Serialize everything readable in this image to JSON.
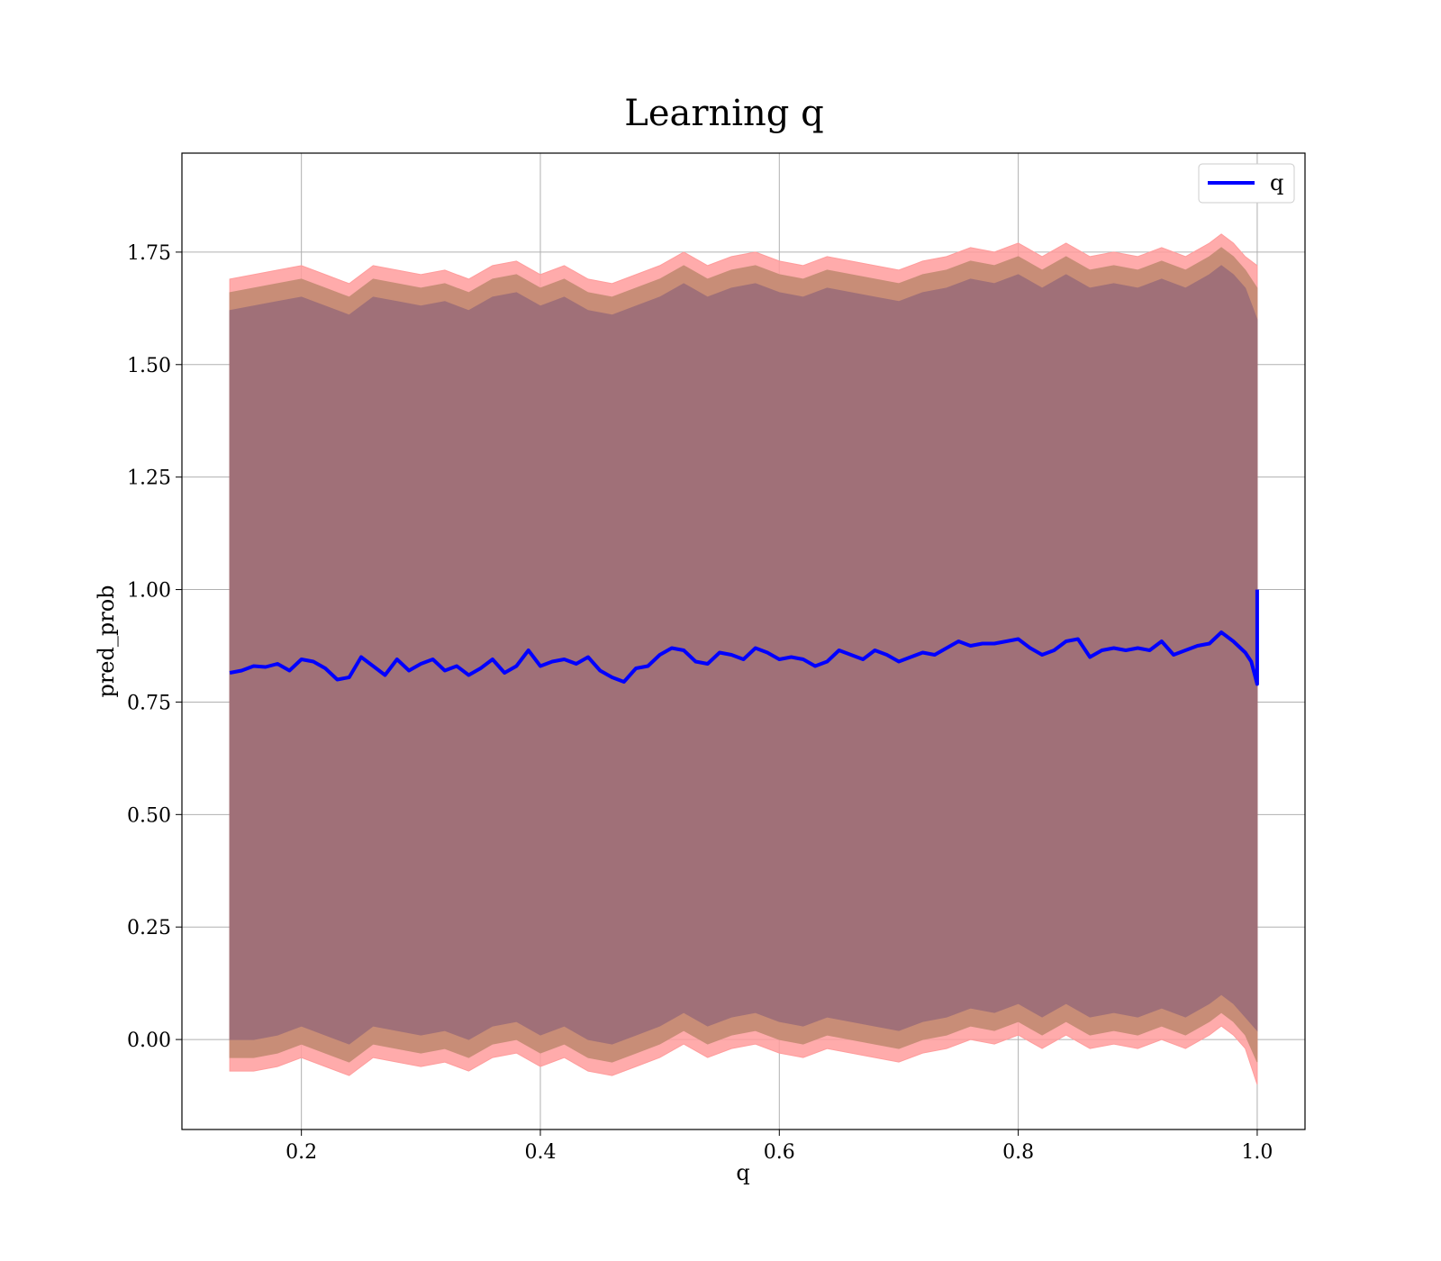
{
  "chart_data": {
    "type": "line",
    "title": "Learning q",
    "xlabel": "q",
    "ylabel": "pred_prob",
    "xlim": [
      0.1,
      1.04
    ],
    "ylim": [
      -0.2,
      1.97
    ],
    "grid": true,
    "legend": {
      "position": "top-right",
      "entries": [
        "q"
      ]
    },
    "x_ticks": [
      0.2,
      0.4,
      0.6,
      0.8,
      1.0
    ],
    "x_tick_labels": [
      "0.2",
      "0.4",
      "0.6",
      "0.8",
      "1.0"
    ],
    "y_ticks": [
      0.0,
      0.25,
      0.5,
      0.75,
      1.0,
      1.25,
      1.5,
      1.75
    ],
    "y_tick_labels": [
      "0.00",
      "0.25",
      "0.50",
      "0.75",
      "1.00",
      "1.25",
      "1.50",
      "1.75"
    ],
    "colors": {
      "line": "#0000ff",
      "band_outer": "#ff9c9c",
      "band_middle": "#c88d77",
      "band_inner": "#a07078"
    },
    "series": [
      {
        "name": "q",
        "role": "mean",
        "x": [
          0.14,
          0.15,
          0.16,
          0.17,
          0.18,
          0.19,
          0.2,
          0.21,
          0.22,
          0.23,
          0.24,
          0.25,
          0.26,
          0.27,
          0.28,
          0.29,
          0.3,
          0.31,
          0.32,
          0.33,
          0.34,
          0.35,
          0.36,
          0.37,
          0.38,
          0.39,
          0.4,
          0.41,
          0.42,
          0.43,
          0.44,
          0.45,
          0.46,
          0.47,
          0.48,
          0.49,
          0.5,
          0.51,
          0.52,
          0.53,
          0.54,
          0.55,
          0.56,
          0.57,
          0.58,
          0.59,
          0.6,
          0.61,
          0.62,
          0.63,
          0.64,
          0.65,
          0.66,
          0.67,
          0.68,
          0.69,
          0.7,
          0.71,
          0.72,
          0.73,
          0.74,
          0.75,
          0.76,
          0.77,
          0.78,
          0.79,
          0.8,
          0.81,
          0.82,
          0.83,
          0.84,
          0.85,
          0.86,
          0.87,
          0.88,
          0.89,
          0.9,
          0.91,
          0.92,
          0.93,
          0.94,
          0.95,
          0.96,
          0.97,
          0.98,
          0.99,
          0.995,
          1.0,
          1.0
        ],
        "y": [
          0.815,
          0.82,
          0.83,
          0.828,
          0.835,
          0.82,
          0.845,
          0.84,
          0.825,
          0.8,
          0.805,
          0.85,
          0.83,
          0.81,
          0.845,
          0.82,
          0.835,
          0.845,
          0.82,
          0.83,
          0.81,
          0.825,
          0.845,
          0.815,
          0.83,
          0.865,
          0.83,
          0.84,
          0.845,
          0.835,
          0.85,
          0.82,
          0.805,
          0.795,
          0.825,
          0.83,
          0.855,
          0.87,
          0.865,
          0.84,
          0.835,
          0.86,
          0.855,
          0.845,
          0.87,
          0.86,
          0.845,
          0.85,
          0.845,
          0.83,
          0.84,
          0.865,
          0.855,
          0.845,
          0.865,
          0.855,
          0.84,
          0.85,
          0.86,
          0.855,
          0.87,
          0.885,
          0.875,
          0.88,
          0.88,
          0.885,
          0.89,
          0.87,
          0.855,
          0.865,
          0.885,
          0.89,
          0.85,
          0.865,
          0.87,
          0.865,
          0.87,
          0.865,
          0.885,
          0.855,
          0.865,
          0.875,
          0.88,
          0.905,
          0.885,
          0.86,
          0.84,
          0.79,
          1.0
        ]
      },
      {
        "name": "",
        "role": "outer_upper",
        "x": [
          0.14,
          0.16,
          0.18,
          0.2,
          0.22,
          0.24,
          0.26,
          0.28,
          0.3,
          0.32,
          0.34,
          0.36,
          0.38,
          0.4,
          0.42,
          0.44,
          0.46,
          0.48,
          0.5,
          0.52,
          0.54,
          0.56,
          0.58,
          0.6,
          0.62,
          0.64,
          0.66,
          0.68,
          0.7,
          0.72,
          0.74,
          0.76,
          0.78,
          0.8,
          0.82,
          0.84,
          0.86,
          0.88,
          0.9,
          0.92,
          0.94,
          0.96,
          0.97,
          0.98,
          0.99,
          1.0
        ],
        "y": [
          1.69,
          1.7,
          1.71,
          1.72,
          1.7,
          1.68,
          1.72,
          1.71,
          1.7,
          1.71,
          1.69,
          1.72,
          1.73,
          1.7,
          1.72,
          1.69,
          1.68,
          1.7,
          1.72,
          1.75,
          1.72,
          1.74,
          1.75,
          1.73,
          1.72,
          1.74,
          1.73,
          1.72,
          1.71,
          1.73,
          1.74,
          1.76,
          1.75,
          1.77,
          1.74,
          1.77,
          1.74,
          1.75,
          1.74,
          1.76,
          1.74,
          1.77,
          1.79,
          1.77,
          1.74,
          1.72
        ]
      },
      {
        "name": "",
        "role": "middle_upper",
        "x": [
          0.14,
          0.16,
          0.18,
          0.2,
          0.22,
          0.24,
          0.26,
          0.28,
          0.3,
          0.32,
          0.34,
          0.36,
          0.38,
          0.4,
          0.42,
          0.44,
          0.46,
          0.48,
          0.5,
          0.52,
          0.54,
          0.56,
          0.58,
          0.6,
          0.62,
          0.64,
          0.66,
          0.68,
          0.7,
          0.72,
          0.74,
          0.76,
          0.78,
          0.8,
          0.82,
          0.84,
          0.86,
          0.88,
          0.9,
          0.92,
          0.94,
          0.96,
          0.97,
          0.98,
          0.99,
          1.0
        ],
        "y": [
          1.66,
          1.67,
          1.68,
          1.69,
          1.67,
          1.65,
          1.69,
          1.68,
          1.67,
          1.68,
          1.66,
          1.69,
          1.7,
          1.67,
          1.69,
          1.66,
          1.65,
          1.67,
          1.69,
          1.72,
          1.69,
          1.71,
          1.72,
          1.7,
          1.69,
          1.71,
          1.7,
          1.69,
          1.68,
          1.7,
          1.71,
          1.73,
          1.72,
          1.74,
          1.71,
          1.74,
          1.71,
          1.72,
          1.71,
          1.73,
          1.71,
          1.74,
          1.76,
          1.74,
          1.71,
          1.67
        ]
      },
      {
        "name": "",
        "role": "inner_upper",
        "x": [
          0.14,
          0.16,
          0.18,
          0.2,
          0.22,
          0.24,
          0.26,
          0.28,
          0.3,
          0.32,
          0.34,
          0.36,
          0.38,
          0.4,
          0.42,
          0.44,
          0.46,
          0.48,
          0.5,
          0.52,
          0.54,
          0.56,
          0.58,
          0.6,
          0.62,
          0.64,
          0.66,
          0.68,
          0.7,
          0.72,
          0.74,
          0.76,
          0.78,
          0.8,
          0.82,
          0.84,
          0.86,
          0.88,
          0.9,
          0.92,
          0.94,
          0.96,
          0.97,
          0.98,
          0.99,
          1.0
        ],
        "y": [
          1.62,
          1.63,
          1.64,
          1.65,
          1.63,
          1.61,
          1.65,
          1.64,
          1.63,
          1.64,
          1.62,
          1.65,
          1.66,
          1.63,
          1.65,
          1.62,
          1.61,
          1.63,
          1.65,
          1.68,
          1.65,
          1.67,
          1.68,
          1.66,
          1.65,
          1.67,
          1.66,
          1.65,
          1.64,
          1.66,
          1.67,
          1.69,
          1.68,
          1.7,
          1.67,
          1.7,
          1.67,
          1.68,
          1.67,
          1.69,
          1.67,
          1.7,
          1.72,
          1.7,
          1.67,
          1.6
        ]
      },
      {
        "name": "",
        "role": "inner_lower",
        "x": [
          0.14,
          0.16,
          0.18,
          0.2,
          0.22,
          0.24,
          0.26,
          0.28,
          0.3,
          0.32,
          0.34,
          0.36,
          0.38,
          0.4,
          0.42,
          0.44,
          0.46,
          0.48,
          0.5,
          0.52,
          0.54,
          0.56,
          0.58,
          0.6,
          0.62,
          0.64,
          0.66,
          0.68,
          0.7,
          0.72,
          0.74,
          0.76,
          0.78,
          0.8,
          0.82,
          0.84,
          0.86,
          0.88,
          0.9,
          0.92,
          0.94,
          0.96,
          0.97,
          0.98,
          0.99,
          1.0
        ],
        "y": [
          0.0,
          0.0,
          0.01,
          0.03,
          0.01,
          -0.01,
          0.03,
          0.02,
          0.01,
          0.02,
          0.0,
          0.03,
          0.04,
          0.01,
          0.03,
          0.0,
          -0.01,
          0.01,
          0.03,
          0.06,
          0.03,
          0.05,
          0.06,
          0.04,
          0.03,
          0.05,
          0.04,
          0.03,
          0.02,
          0.04,
          0.05,
          0.07,
          0.06,
          0.08,
          0.05,
          0.08,
          0.05,
          0.06,
          0.05,
          0.07,
          0.05,
          0.08,
          0.1,
          0.08,
          0.05,
          0.02
        ]
      },
      {
        "name": "",
        "role": "middle_lower",
        "x": [
          0.14,
          0.16,
          0.18,
          0.2,
          0.22,
          0.24,
          0.26,
          0.28,
          0.3,
          0.32,
          0.34,
          0.36,
          0.38,
          0.4,
          0.42,
          0.44,
          0.46,
          0.48,
          0.5,
          0.52,
          0.54,
          0.56,
          0.58,
          0.6,
          0.62,
          0.64,
          0.66,
          0.68,
          0.7,
          0.72,
          0.74,
          0.76,
          0.78,
          0.8,
          0.82,
          0.84,
          0.86,
          0.88,
          0.9,
          0.92,
          0.94,
          0.96,
          0.97,
          0.98,
          0.99,
          1.0
        ],
        "y": [
          -0.04,
          -0.04,
          -0.03,
          -0.01,
          -0.03,
          -0.05,
          -0.01,
          -0.02,
          -0.03,
          -0.02,
          -0.04,
          -0.01,
          0.0,
          -0.03,
          -0.01,
          -0.04,
          -0.05,
          -0.03,
          -0.01,
          0.02,
          -0.01,
          0.01,
          0.02,
          0.0,
          -0.01,
          0.01,
          0.0,
          -0.01,
          -0.02,
          0.0,
          0.01,
          0.03,
          0.02,
          0.04,
          0.01,
          0.04,
          0.01,
          0.02,
          0.01,
          0.03,
          0.01,
          0.04,
          0.06,
          0.04,
          0.01,
          -0.05
        ]
      },
      {
        "name": "",
        "role": "outer_lower",
        "x": [
          0.14,
          0.16,
          0.18,
          0.2,
          0.22,
          0.24,
          0.26,
          0.28,
          0.3,
          0.32,
          0.34,
          0.36,
          0.38,
          0.4,
          0.42,
          0.44,
          0.46,
          0.48,
          0.5,
          0.52,
          0.54,
          0.56,
          0.58,
          0.6,
          0.62,
          0.64,
          0.66,
          0.68,
          0.7,
          0.72,
          0.74,
          0.76,
          0.78,
          0.8,
          0.82,
          0.84,
          0.86,
          0.88,
          0.9,
          0.92,
          0.94,
          0.96,
          0.97,
          0.98,
          0.99,
          1.0
        ],
        "y": [
          -0.07,
          -0.07,
          -0.06,
          -0.04,
          -0.06,
          -0.08,
          -0.04,
          -0.05,
          -0.06,
          -0.05,
          -0.07,
          -0.04,
          -0.03,
          -0.06,
          -0.04,
          -0.07,
          -0.08,
          -0.06,
          -0.04,
          -0.01,
          -0.04,
          -0.02,
          -0.01,
          -0.03,
          -0.04,
          -0.02,
          -0.03,
          -0.04,
          -0.05,
          -0.03,
          -0.02,
          0.0,
          -0.01,
          0.01,
          -0.02,
          0.01,
          -0.02,
          -0.01,
          -0.02,
          0.0,
          -0.02,
          0.01,
          0.03,
          0.01,
          -0.02,
          -0.1
        ]
      }
    ]
  }
}
